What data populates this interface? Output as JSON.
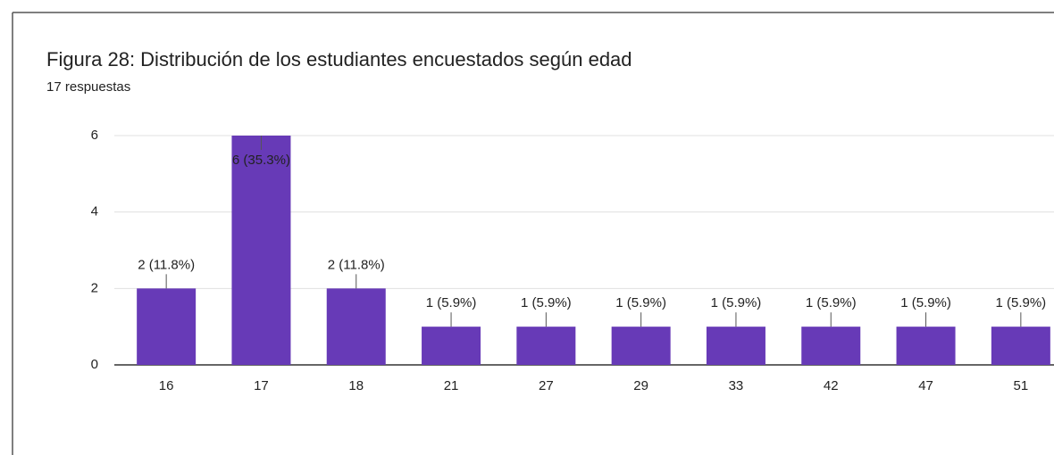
{
  "chart_data": {
    "type": "bar",
    "title": "Figura 28: Distribución de los estudiantes encuestados según edad",
    "subtitle": "17 respuestas",
    "categories": [
      "16",
      "17",
      "18",
      "21",
      "27",
      "29",
      "33",
      "42",
      "47",
      "51"
    ],
    "values": [
      2,
      6,
      2,
      1,
      1,
      1,
      1,
      1,
      1,
      1
    ],
    "value_labels": [
      "2 (11.8%)",
      "6 (35.3%)",
      "2 (11.8%)",
      "1 (5.9%)",
      "1 (5.9%)",
      "1 (5.9%)",
      "1 (5.9%)",
      "1 (5.9%)",
      "1 (5.9%)",
      "1 (5.9%)"
    ],
    "color": "#673ab7",
    "ylim": [
      0,
      6
    ],
    "yticks": [
      0,
      2,
      4,
      6
    ],
    "grid": true
  }
}
